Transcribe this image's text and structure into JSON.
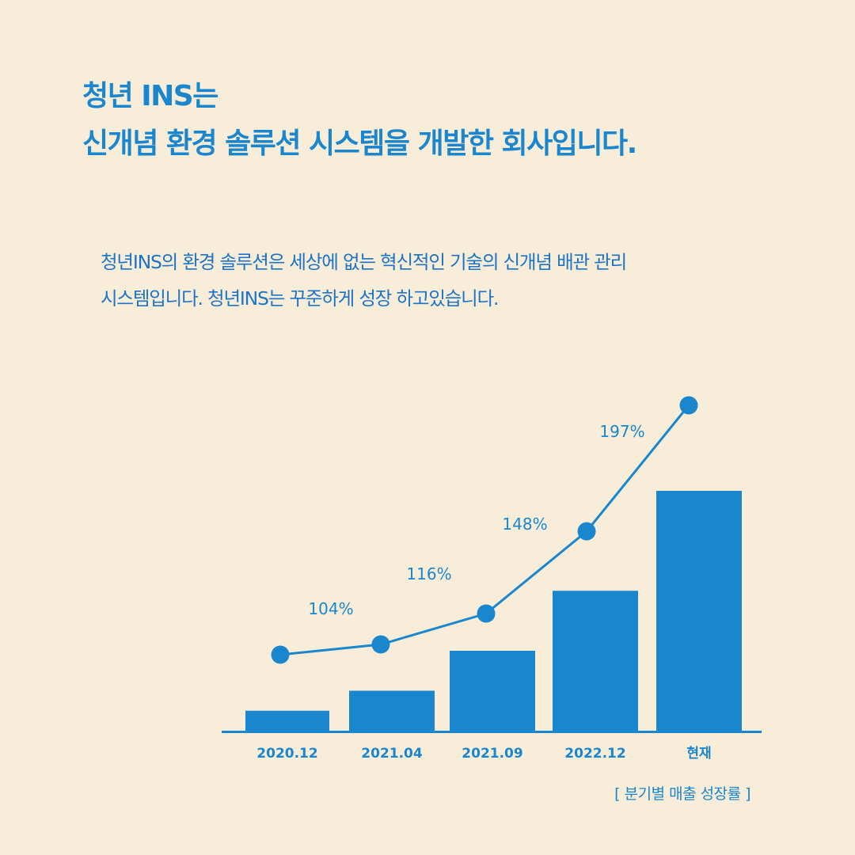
{
  "colors": {
    "background": "#f8edd9",
    "accent": "#1a86cd"
  },
  "header": {
    "title_line1": "청년 INS는",
    "title_line2": "신개념 환경 솔루션 시스템을 개발한 회사입니다."
  },
  "intro": {
    "line1": "청년INS의  환경 솔루션은 세상에 없는  혁신적인 기술의 신개념 배관 관리",
    "line2": "시스템입니다.  청년INS는 꾸준하게 성장 하고있습니다."
  },
  "chart_data": {
    "type": "bar",
    "categories": [
      "2020.12",
      "2021.04",
      "2021.09",
      "2022.12",
      "현재"
    ],
    "series": [
      {
        "values": [
          2,
          4,
          8,
          14,
          24
        ]
      },
      {
        "values": [
          100,
          104,
          116,
          148,
          197
        ]
      }
    ],
    "point_labels": [
      "",
      "104%",
      "116%",
      "148%",
      "197%"
    ],
    "caption": "[ 분기별 매출 성장률 ]",
    "grid": false,
    "axes_visible": false
  }
}
